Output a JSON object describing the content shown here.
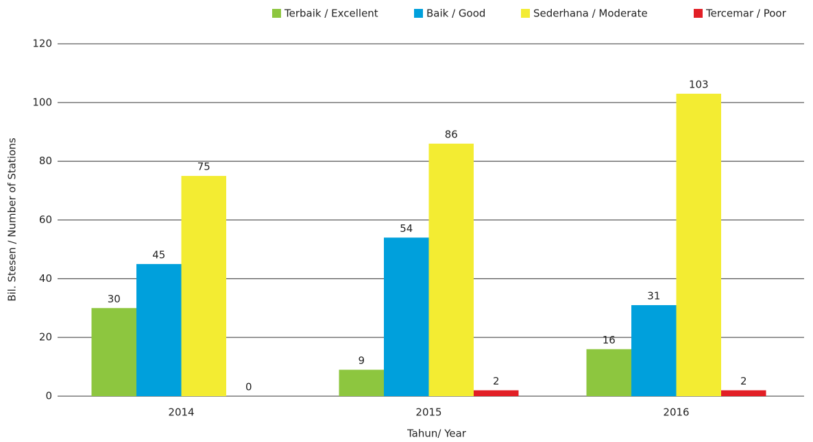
{
  "chart_data": {
    "type": "bar",
    "categories": [
      "2014",
      "2015",
      "2016"
    ],
    "series": [
      {
        "name": "Terbaik / Excellent",
        "color": "#8dc63f",
        "values": [
          30,
          9,
          16
        ]
      },
      {
        "name": "Baik / Good",
        "color": "#00a0dc",
        "values": [
          45,
          54,
          31
        ]
      },
      {
        "name": "Sederhana / Moderate",
        "color": "#f3ec32",
        "values": [
          75,
          86,
          103
        ]
      },
      {
        "name": "Tercemar / Poor",
        "color": "#e21f26",
        "values": [
          0,
          2,
          2
        ]
      }
    ],
    "x_label": "Tahun/ Year",
    "y_label": "Bil. Stesen / Number of Stations",
    "ylim": [
      0,
      120
    ],
    "yticks": [
      0,
      20,
      40,
      60,
      80,
      100,
      120
    ],
    "grid": true,
    "legend": "top-right"
  }
}
